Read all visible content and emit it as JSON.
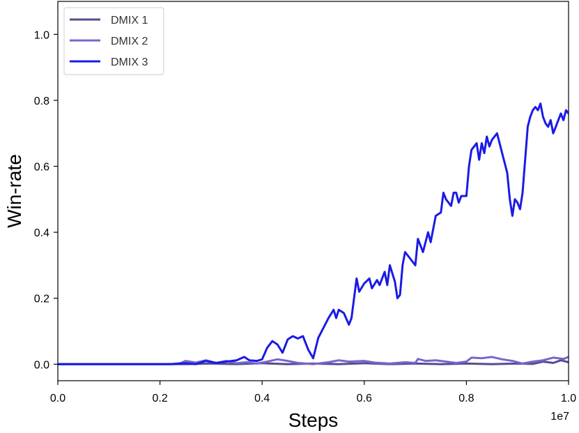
{
  "chart_data": {
    "type": "line",
    "title": "",
    "xlabel": "Steps",
    "ylabel": "Win-rate",
    "x_offset_label": "1e7",
    "xlim": [
      0.0,
      1.0
    ],
    "ylim": [
      -0.05,
      1.1
    ],
    "xticks": [
      "0.0",
      "0.2",
      "0.4",
      "0.6",
      "0.8",
      "1.0"
    ],
    "yticks": [
      "0.0",
      "0.2",
      "0.4",
      "0.6",
      "0.8",
      "1.0"
    ],
    "grid": false,
    "legend_position": "upper-left",
    "series": [
      {
        "name": "DMIX 1",
        "color": "#524d8c",
        "points": [
          [
            0.0,
            0.0
          ],
          [
            0.25,
            0.0
          ],
          [
            0.3,
            0.002
          ],
          [
            0.35,
            0.0
          ],
          [
            0.4,
            0.003
          ],
          [
            0.45,
            0.0
          ],
          [
            0.5,
            0.002
          ],
          [
            0.55,
            0.0
          ],
          [
            0.6,
            0.003
          ],
          [
            0.65,
            0.0
          ],
          [
            0.7,
            0.002
          ],
          [
            0.75,
            0.0
          ],
          [
            0.8,
            0.002
          ],
          [
            0.85,
            0.0
          ],
          [
            0.9,
            0.002
          ],
          [
            0.93,
            0.001
          ],
          [
            0.95,
            0.008
          ],
          [
            0.97,
            0.004
          ],
          [
            0.985,
            0.012
          ],
          [
            1.0,
            0.006
          ]
        ]
      },
      {
        "name": "DMIX 2",
        "color": "#7a64cc",
        "points": [
          [
            0.0,
            0.0
          ],
          [
            0.22,
            0.0
          ],
          [
            0.24,
            0.003
          ],
          [
            0.25,
            0.01
          ],
          [
            0.27,
            0.005
          ],
          [
            0.29,
            0.012
          ],
          [
            0.31,
            0.004
          ],
          [
            0.33,
            0.01
          ],
          [
            0.35,
            0.003
          ],
          [
            0.37,
            0.006
          ],
          [
            0.39,
            0.002
          ],
          [
            0.41,
            0.008
          ],
          [
            0.43,
            0.015
          ],
          [
            0.45,
            0.01
          ],
          [
            0.47,
            0.004
          ],
          [
            0.5,
            0.0
          ],
          [
            0.53,
            0.006
          ],
          [
            0.55,
            0.012
          ],
          [
            0.57,
            0.008
          ],
          [
            0.6,
            0.01
          ],
          [
            0.62,
            0.005
          ],
          [
            0.65,
            0.002
          ],
          [
            0.68,
            0.006
          ],
          [
            0.7,
            0.004
          ],
          [
            0.705,
            0.016
          ],
          [
            0.72,
            0.01
          ],
          [
            0.74,
            0.012
          ],
          [
            0.76,
            0.008
          ],
          [
            0.78,
            0.004
          ],
          [
            0.8,
            0.008
          ],
          [
            0.81,
            0.02
          ],
          [
            0.83,
            0.018
          ],
          [
            0.85,
            0.022
          ],
          [
            0.87,
            0.015
          ],
          [
            0.89,
            0.01
          ],
          [
            0.91,
            0.002
          ],
          [
            0.93,
            0.008
          ],
          [
            0.95,
            0.012
          ],
          [
            0.97,
            0.02
          ],
          [
            0.99,
            0.016
          ],
          [
            1.0,
            0.022
          ]
        ]
      },
      {
        "name": "DMIX 3",
        "color": "#1a1ae6",
        "points": [
          [
            0.0,
            0.0
          ],
          [
            0.22,
            0.0
          ],
          [
            0.25,
            0.003
          ],
          [
            0.27,
            0.0
          ],
          [
            0.29,
            0.01
          ],
          [
            0.31,
            0.004
          ],
          [
            0.33,
            0.008
          ],
          [
            0.35,
            0.012
          ],
          [
            0.365,
            0.022
          ],
          [
            0.375,
            0.012
          ],
          [
            0.39,
            0.01
          ],
          [
            0.4,
            0.015
          ],
          [
            0.41,
            0.05
          ],
          [
            0.42,
            0.07
          ],
          [
            0.43,
            0.06
          ],
          [
            0.44,
            0.035
          ],
          [
            0.45,
            0.075
          ],
          [
            0.46,
            0.085
          ],
          [
            0.47,
            0.078
          ],
          [
            0.48,
            0.085
          ],
          [
            0.49,
            0.045
          ],
          [
            0.5,
            0.018
          ],
          [
            0.51,
            0.08
          ],
          [
            0.515,
            0.095
          ],
          [
            0.53,
            0.14
          ],
          [
            0.54,
            0.165
          ],
          [
            0.545,
            0.14
          ],
          [
            0.55,
            0.165
          ],
          [
            0.56,
            0.155
          ],
          [
            0.57,
            0.12
          ],
          [
            0.575,
            0.14
          ],
          [
            0.585,
            0.26
          ],
          [
            0.59,
            0.22
          ],
          [
            0.6,
            0.245
          ],
          [
            0.61,
            0.26
          ],
          [
            0.615,
            0.23
          ],
          [
            0.625,
            0.255
          ],
          [
            0.63,
            0.24
          ],
          [
            0.64,
            0.28
          ],
          [
            0.645,
            0.24
          ],
          [
            0.65,
            0.3
          ],
          [
            0.66,
            0.25
          ],
          [
            0.665,
            0.2
          ],
          [
            0.67,
            0.21
          ],
          [
            0.675,
            0.3
          ],
          [
            0.68,
            0.34
          ],
          [
            0.69,
            0.32
          ],
          [
            0.7,
            0.3
          ],
          [
            0.705,
            0.38
          ],
          [
            0.715,
            0.34
          ],
          [
            0.725,
            0.4
          ],
          [
            0.73,
            0.37
          ],
          [
            0.74,
            0.45
          ],
          [
            0.75,
            0.46
          ],
          [
            0.755,
            0.52
          ],
          [
            0.76,
            0.5
          ],
          [
            0.77,
            0.48
          ],
          [
            0.775,
            0.52
          ],
          [
            0.78,
            0.52
          ],
          [
            0.785,
            0.49
          ],
          [
            0.79,
            0.51
          ],
          [
            0.8,
            0.51
          ],
          [
            0.805,
            0.6
          ],
          [
            0.81,
            0.65
          ],
          [
            0.82,
            0.67
          ],
          [
            0.825,
            0.62
          ],
          [
            0.83,
            0.67
          ],
          [
            0.835,
            0.64
          ],
          [
            0.84,
            0.69
          ],
          [
            0.845,
            0.66
          ],
          [
            0.85,
            0.68
          ],
          [
            0.86,
            0.7
          ],
          [
            0.87,
            0.64
          ],
          [
            0.88,
            0.58
          ],
          [
            0.885,
            0.5
          ],
          [
            0.89,
            0.45
          ],
          [
            0.895,
            0.5
          ],
          [
            0.9,
            0.49
          ],
          [
            0.905,
            0.47
          ],
          [
            0.91,
            0.52
          ],
          [
            0.915,
            0.62
          ],
          [
            0.92,
            0.72
          ],
          [
            0.925,
            0.75
          ],
          [
            0.93,
            0.77
          ],
          [
            0.935,
            0.78
          ],
          [
            0.94,
            0.77
          ],
          [
            0.945,
            0.79
          ],
          [
            0.95,
            0.75
          ],
          [
            0.955,
            0.73
          ],
          [
            0.96,
            0.72
          ],
          [
            0.965,
            0.74
          ],
          [
            0.97,
            0.7
          ],
          [
            0.975,
            0.72
          ],
          [
            0.98,
            0.74
          ],
          [
            0.985,
            0.76
          ],
          [
            0.99,
            0.74
          ],
          [
            0.995,
            0.77
          ],
          [
            1.0,
            0.76
          ],
          [
            1.005,
            0.78
          ],
          [
            1.01,
            0.77
          ],
          [
            1.015,
            0.8
          ],
          [
            1.02,
            0.79
          ],
          [
            1.025,
            0.81
          ],
          [
            1.03,
            0.78
          ],
          [
            1.035,
            0.76
          ],
          [
            1.04,
            0.79
          ]
        ]
      }
    ]
  }
}
